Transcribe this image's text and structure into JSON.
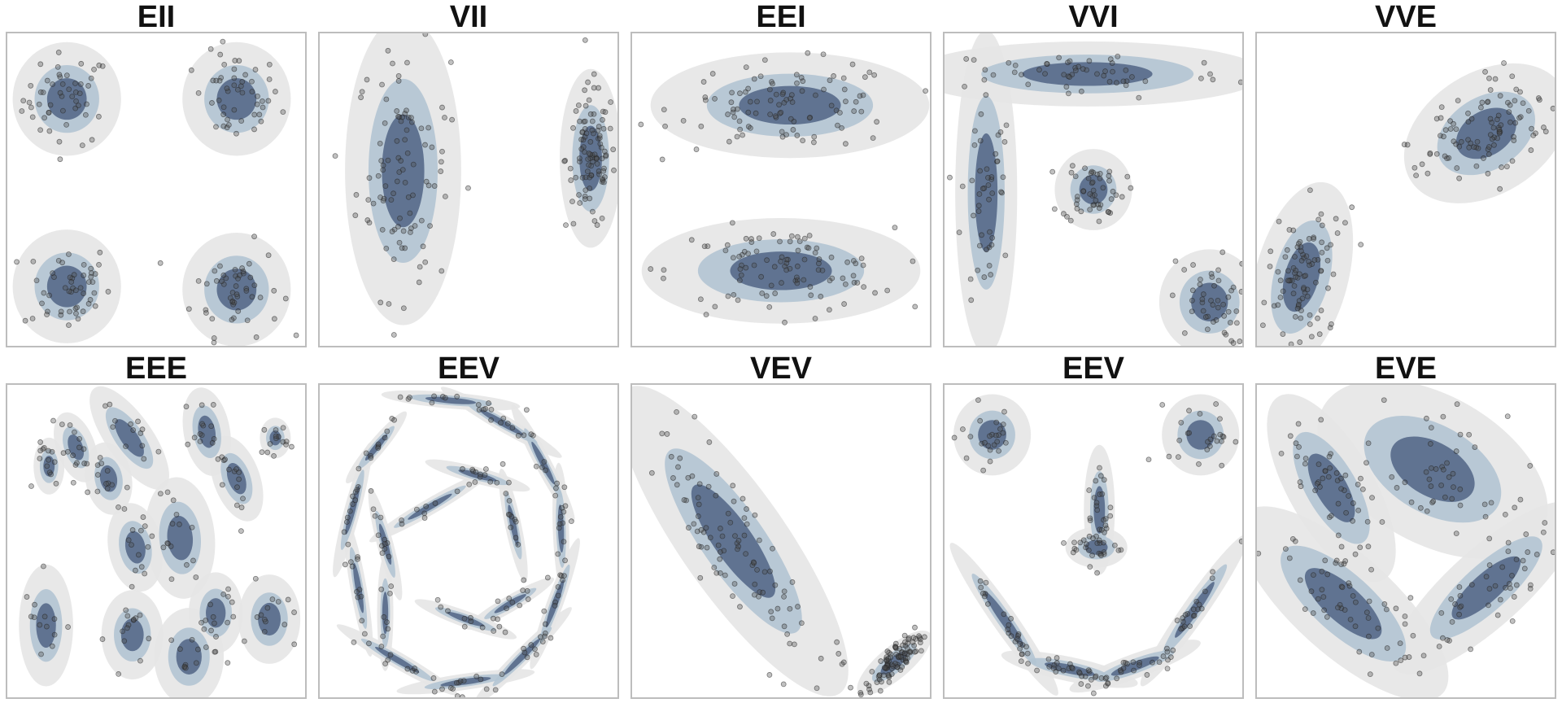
{
  "colors": {
    "outer_band": "#e6e6e6",
    "middle_band": "#b3c4d3",
    "inner_band": "#56698a",
    "point": "#4d4d4d",
    "frame": "#bdbdbd"
  },
  "chart_data": [
    {
      "type": "scatter",
      "title": "EII",
      "xlim": [
        0,
        10
      ],
      "ylim": [
        0,
        10
      ],
      "grid": false,
      "components": [
        {
          "mean": [
            2,
            7.9
          ],
          "sd": [
            0.7,
            0.7
          ],
          "angle": 0,
          "weight": 1
        },
        {
          "mean": [
            7.7,
            7.9
          ],
          "sd": [
            0.7,
            0.7
          ],
          "angle": 0,
          "weight": 1
        },
        {
          "mean": [
            2,
            1.9
          ],
          "sd": [
            0.7,
            0.7
          ],
          "angle": 0,
          "weight": 1
        },
        {
          "mean": [
            7.7,
            1.8
          ],
          "sd": [
            0.7,
            0.7
          ],
          "angle": 0,
          "weight": 1
        }
      ]
    },
    {
      "type": "scatter",
      "title": "VII",
      "xlim": [
        0,
        10
      ],
      "ylim": [
        0,
        10
      ],
      "grid": false,
      "components": [
        {
          "mean": [
            2.8,
            5.6
          ],
          "sd": [
            0.75,
            1.9
          ],
          "angle": 0,
          "weight": 1
        },
        {
          "mean": [
            9.1,
            6.0
          ],
          "sd": [
            0.4,
            1.1
          ],
          "angle": 0,
          "weight": 1
        }
      ]
    },
    {
      "type": "scatter",
      "title": "EEI",
      "xlim": [
        0,
        10
      ],
      "ylim": [
        0,
        10
      ],
      "grid": false,
      "components": [
        {
          "mean": [
            5.3,
            7.7
          ],
          "sd": [
            1.8,
            0.65
          ],
          "angle": 0,
          "weight": 1
        },
        {
          "mean": [
            5.0,
            2.4
          ],
          "sd": [
            1.8,
            0.65
          ],
          "angle": 0,
          "weight": 1
        }
      ]
    },
    {
      "type": "scatter",
      "title": "VVI",
      "xlim": [
        0,
        10
      ],
      "ylim": [
        0,
        10
      ],
      "grid": false,
      "components": [
        {
          "mean": [
            4.8,
            8.7
          ],
          "sd": [
            2.3,
            0.4
          ],
          "angle": 0,
          "weight": 1
        },
        {
          "mean": [
            1.4,
            4.9
          ],
          "sd": [
            0.4,
            2.0
          ],
          "angle": 0,
          "weight": 1
        },
        {
          "mean": [
            5.0,
            5.0
          ],
          "sd": [
            0.5,
            0.5
          ],
          "angle": 0,
          "weight": 1
        },
        {
          "mean": [
            8.9,
            1.4
          ],
          "sd": [
            0.65,
            0.65
          ],
          "angle": 0,
          "weight": 1
        }
      ]
    },
    {
      "type": "scatter",
      "title": "VVE",
      "xlim": [
        0,
        10
      ],
      "ylim": [
        0,
        10
      ],
      "grid": false,
      "components": [
        {
          "mean": [
            7.7,
            6.8
          ],
          "sd": [
            1.15,
            0.75
          ],
          "angle": 32,
          "weight": 1
        },
        {
          "mean": [
            1.5,
            2.2
          ],
          "sd": [
            0.6,
            1.2
          ],
          "angle": -15,
          "weight": 1
        }
      ]
    },
    {
      "type": "scatter",
      "title": "EEE",
      "xlim": [
        0,
        10
      ],
      "ylim": [
        0,
        10
      ],
      "grid": false,
      "components": [
        {
          "mean": [
            2.3,
            8.0
          ],
          "sd": [
            0.25,
            0.45
          ],
          "angle": 20,
          "weight": 1
        },
        {
          "mean": [
            4.1,
            8.3
          ],
          "sd": [
            0.3,
            0.75
          ],
          "angle": 35,
          "weight": 1
        },
        {
          "mean": [
            6.7,
            8.5
          ],
          "sd": [
            0.3,
            0.55
          ],
          "angle": 10,
          "weight": 1
        },
        {
          "mean": [
            7.7,
            7.0
          ],
          "sd": [
            0.3,
            0.55
          ],
          "angle": 20,
          "weight": 1
        },
        {
          "mean": [
            1.4,
            7.4
          ],
          "sd": [
            0.2,
            0.35
          ],
          "angle": 0,
          "weight": 1
        },
        {
          "mean": [
            3.4,
            7.0
          ],
          "sd": [
            0.3,
            0.45
          ],
          "angle": 10,
          "weight": 1
        },
        {
          "mean": [
            9.0,
            8.3
          ],
          "sd": [
            0.2,
            0.25
          ],
          "angle": 0,
          "weight": 1
        },
        {
          "mean": [
            4.3,
            4.8
          ],
          "sd": [
            0.35,
            0.55
          ],
          "angle": 10,
          "weight": 1
        },
        {
          "mean": [
            5.8,
            5.1
          ],
          "sd": [
            0.45,
            0.75
          ],
          "angle": 5,
          "weight": 1
        },
        {
          "mean": [
            1.3,
            2.3
          ],
          "sd": [
            0.35,
            0.75
          ],
          "angle": 0,
          "weight": 1
        },
        {
          "mean": [
            4.2,
            2.0
          ],
          "sd": [
            0.4,
            0.55
          ],
          "angle": 0,
          "weight": 1
        },
        {
          "mean": [
            6.1,
            1.3
          ],
          "sd": [
            0.45,
            0.6
          ],
          "angle": 0,
          "weight": 1
        },
        {
          "mean": [
            7.0,
            2.7
          ],
          "sd": [
            0.35,
            0.5
          ],
          "angle": 0,
          "weight": 1
        },
        {
          "mean": [
            8.8,
            2.5
          ],
          "sd": [
            0.4,
            0.55
          ],
          "angle": 0,
          "weight": 1
        }
      ]
    },
    {
      "type": "scatter",
      "title": "EEV",
      "xlim": [
        0,
        10
      ],
      "ylim": [
        0,
        10
      ],
      "grid": false,
      "components": [
        {
          "mean": [
            4.4,
            9.5
          ],
          "sd": [
            0.9,
            0.1
          ],
          "angle": -5,
          "weight": 1
        },
        {
          "mean": [
            6.1,
            8.8
          ],
          "sd": [
            0.9,
            0.1
          ],
          "angle": -30,
          "weight": 1
        },
        {
          "mean": [
            7.5,
            7.5
          ],
          "sd": [
            0.85,
            0.1
          ],
          "angle": -62,
          "weight": 1
        },
        {
          "mean": [
            8.1,
            5.4
          ],
          "sd": [
            0.85,
            0.1
          ],
          "angle": -88,
          "weight": 1
        },
        {
          "mean": [
            7.9,
            3.0
          ],
          "sd": [
            0.9,
            0.1
          ],
          "angle": -110,
          "weight": 1
        },
        {
          "mean": [
            6.8,
            1.3
          ],
          "sd": [
            0.9,
            0.1
          ],
          "angle": -135,
          "weight": 1
        },
        {
          "mean": [
            4.9,
            0.5
          ],
          "sd": [
            0.9,
            0.1
          ],
          "angle": -172,
          "weight": 1
        },
        {
          "mean": [
            2.6,
            1.2
          ],
          "sd": [
            0.9,
            0.1
          ],
          "angle": 150,
          "weight": 1
        },
        {
          "mean": [
            1.3,
            3.5
          ],
          "sd": [
            0.9,
            0.1
          ],
          "angle": 100,
          "weight": 1
        },
        {
          "mean": [
            1.1,
            6.0
          ],
          "sd": [
            0.9,
            0.1
          ],
          "angle": 75,
          "weight": 1
        },
        {
          "mean": [
            1.9,
            8.0
          ],
          "sd": [
            0.6,
            0.1
          ],
          "angle": 50,
          "weight": 1
        },
        {
          "mean": [
            3.7,
            6.1
          ],
          "sd": [
            0.9,
            0.1
          ],
          "angle": 30,
          "weight": 1
        },
        {
          "mean": [
            5.3,
            7.1
          ],
          "sd": [
            0.7,
            0.1
          ],
          "angle": -15,
          "weight": 1
        },
        {
          "mean": [
            6.5,
            5.5
          ],
          "sd": [
            0.75,
            0.1
          ],
          "angle": -78,
          "weight": 1
        },
        {
          "mean": [
            2.2,
            4.9
          ],
          "sd": [
            0.75,
            0.1
          ],
          "angle": -75,
          "weight": 1
        },
        {
          "mean": [
            2.2,
            2.7
          ],
          "sd": [
            0.75,
            0.1
          ],
          "angle": -90,
          "weight": 1
        },
        {
          "mean": [
            4.9,
            2.5
          ],
          "sd": [
            0.7,
            0.1
          ],
          "angle": -20,
          "weight": 1
        },
        {
          "mean": [
            6.4,
            3.0
          ],
          "sd": [
            0.65,
            0.1
          ],
          "angle": 30,
          "weight": 1
        }
      ]
    },
    {
      "type": "scatter",
      "title": "VEV",
      "xlim": [
        0,
        10
      ],
      "ylim": [
        0,
        10
      ],
      "grid": false,
      "components": [
        {
          "mean": [
            3.4,
            5.0
          ],
          "sd": [
            2.4,
            0.65
          ],
          "angle": -55,
          "weight": 1
        },
        {
          "mean": [
            8.8,
            1.1
          ],
          "sd": [
            0.6,
            0.2
          ],
          "angle": 40,
          "weight": 1
        }
      ]
    },
    {
      "type": "scatter",
      "title": "EEV",
      "xlim": [
        0,
        10
      ],
      "ylim": [
        0,
        10
      ],
      "grid": false,
      "components": [
        {
          "mean": [
            1.6,
            8.4
          ],
          "sd": [
            0.5,
            0.5
          ],
          "angle": 0,
          "weight": 1
        },
        {
          "mean": [
            8.6,
            8.4
          ],
          "sd": [
            0.5,
            0.5
          ],
          "angle": 0,
          "weight": 1
        },
        {
          "mean": [
            5.2,
            6.0
          ],
          "sd": [
            0.2,
            0.8
          ],
          "angle": 0,
          "weight": 1
        },
        {
          "mean": [
            5.1,
            4.8
          ],
          "sd": [
            0.4,
            0.25
          ],
          "angle": 0,
          "weight": 1
        },
        {
          "mean": [
            2.0,
            2.5
          ],
          "sd": [
            1.2,
            0.15
          ],
          "angle": -55,
          "weight": 1
        },
        {
          "mean": [
            4.2,
            0.9
          ],
          "sd": [
            0.9,
            0.15
          ],
          "angle": -12,
          "weight": 1
        },
        {
          "mean": [
            6.4,
            1.0
          ],
          "sd": [
            0.9,
            0.15
          ],
          "angle": 20,
          "weight": 1
        },
        {
          "mean": [
            8.4,
            2.8
          ],
          "sd": [
            1.2,
            0.15
          ],
          "angle": 55,
          "weight": 1
        }
      ]
    },
    {
      "type": "scatter",
      "title": "EVE",
      "xlim": [
        0,
        10
      ],
      "ylim": [
        0,
        10
      ],
      "grid": false,
      "components": [
        {
          "mean": [
            2.5,
            6.7
          ],
          "sd": [
            0.55,
            1.3
          ],
          "angle": 30,
          "weight": 1
        },
        {
          "mean": [
            5.9,
            7.3
          ],
          "sd": [
            0.95,
            1.55
          ],
          "angle": 60,
          "weight": 1
        },
        {
          "mean": [
            2.9,
            3.0
          ],
          "sd": [
            0.65,
            1.65
          ],
          "angle": 48,
          "weight": 1
        },
        {
          "mean": [
            7.7,
            3.5
          ],
          "sd": [
            0.5,
            1.5
          ],
          "angle": -48,
          "weight": 1
        }
      ]
    }
  ]
}
